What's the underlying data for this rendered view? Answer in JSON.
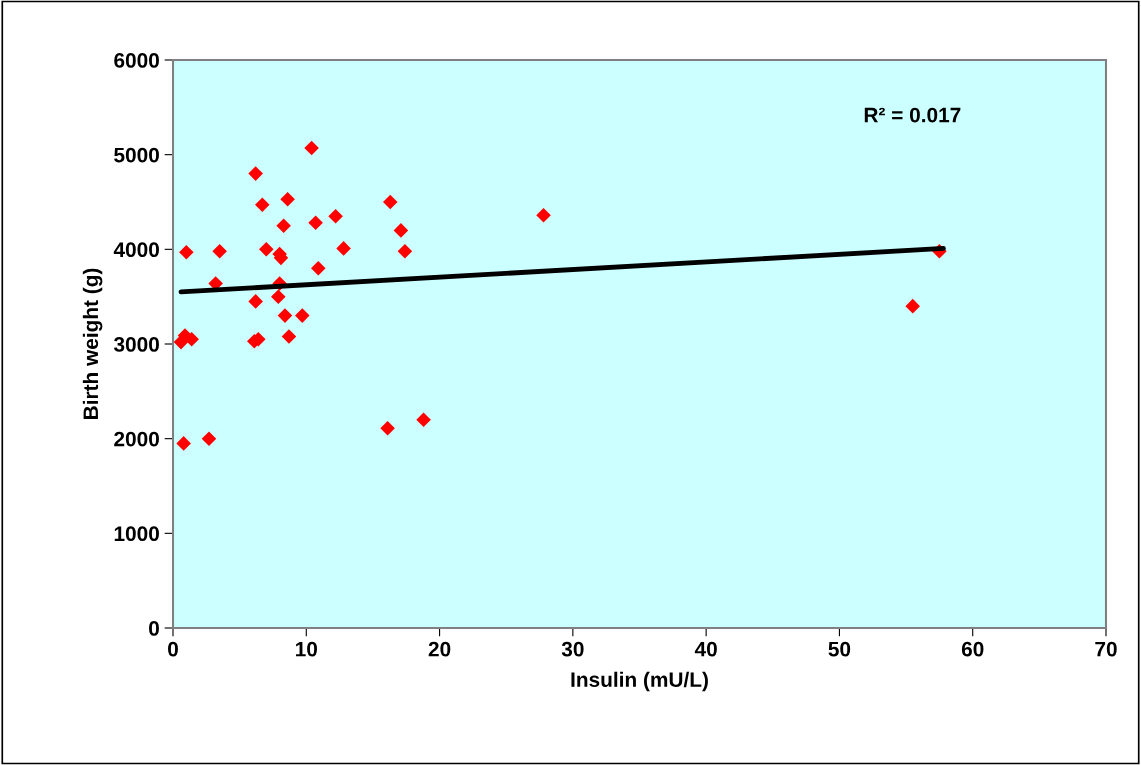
{
  "chart_data": {
    "type": "scatter",
    "xlabel": "Insulin (mU/L)",
    "ylabel": "Birth weight (g)",
    "xlim": [
      0,
      70
    ],
    "xticks": [
      0,
      10,
      20,
      30,
      40,
      50,
      60,
      70
    ],
    "ylim": [
      0,
      6000
    ],
    "yticks": [
      0,
      1000,
      2000,
      3000,
      4000,
      5000,
      6000
    ],
    "grid": false,
    "legend": false,
    "annotations": [
      "R² = 0.017"
    ],
    "series": [
      {
        "color": "#ff0000",
        "marker": "diamond",
        "x": [
          0.8,
          2.7,
          0.6,
          0.9,
          1.4,
          1.0,
          3.5,
          3.2,
          6.2,
          6.7,
          6.2,
          6.1,
          6.4,
          7.0,
          8.0,
          8.1,
          8.6,
          8.3,
          8.0,
          7.9,
          8.4,
          8.7,
          9.7,
          10.4,
          10.7,
          10.9,
          12.2,
          12.8,
          16.3,
          16.1,
          17.1,
          17.4,
          18.8,
          27.8,
          55.5,
          57.5
        ],
        "values": [
          1950,
          2000,
          3020,
          3090,
          3050,
          3970,
          3980,
          3640,
          4800,
          4470,
          3450,
          3030,
          3050,
          4000,
          3950,
          3910,
          4530,
          4250,
          3640,
          3500,
          3300,
          3080,
          3300,
          5070,
          4280,
          3800,
          4350,
          4010,
          4500,
          2110,
          4200,
          3980,
          2200,
          4360,
          3400,
          3980
        ]
      },
      {
        "type": "line",
        "marker": "none",
        "color": "#000000",
        "x": [
          0.6,
          57.8
        ],
        "values": [
          3550,
          4010
        ]
      }
    ]
  }
}
